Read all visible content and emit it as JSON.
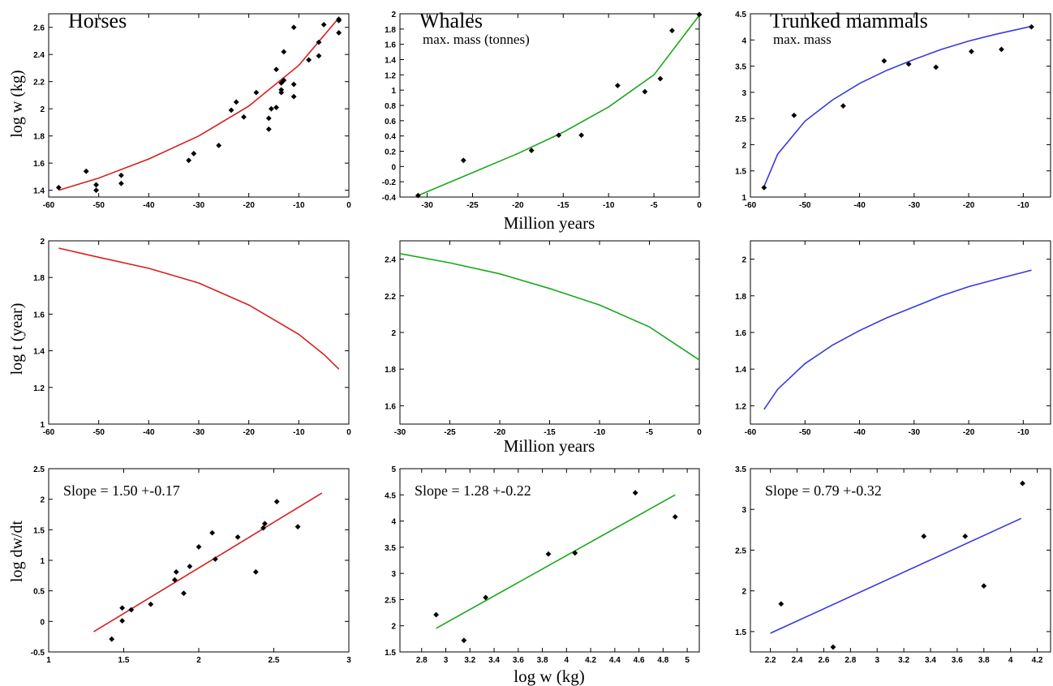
{
  "colors": {
    "horses": "#d81e1e",
    "whales": "#1aa81a",
    "trunked": "#3838e0",
    "points": "#000000"
  },
  "labels": {
    "log_w_kg": "log w (kg)",
    "log_t_year": "log t (year)",
    "log_dwdt": "log dw/dt",
    "million_years": "Million years",
    "xlabel_bottom": "log w (kg)"
  },
  "chart_data": [
    {
      "type": "scatter",
      "title": "Horses",
      "subtitle": "",
      "color": "#d81e1e",
      "xlim": [
        -60,
        0
      ],
      "ylim": [
        1.35,
        2.7
      ],
      "xticks": [
        -60,
        -50,
        -40,
        -30,
        -20,
        -10,
        0
      ],
      "yticks": [
        1.4,
        1.6,
        1.8,
        2,
        2.2,
        2.4,
        2.6
      ],
      "points": {
        "x": [
          -58,
          -52.5,
          -50.5,
          -50.5,
          -45.5,
          -45.5,
          -32,
          -31,
          -26,
          -23.5,
          -22.5,
          -21,
          -18.5,
          -16,
          -16,
          -15.5,
          -14.5,
          -14.5,
          -13.5,
          -13.5,
          -13.5,
          -13,
          -13,
          -11,
          -11,
          -11,
          -8,
          -6,
          -6,
          -5,
          -2,
          -2,
          -2
        ],
        "y": [
          1.42,
          1.54,
          1.4,
          1.44,
          1.45,
          1.51,
          1.62,
          1.67,
          1.73,
          1.99,
          2.05,
          1.94,
          2.12,
          1.85,
          1.93,
          2.0,
          2.01,
          2.29,
          2.12,
          2.14,
          2.19,
          2.21,
          2.42,
          2.09,
          2.18,
          2.6,
          2.36,
          2.39,
          2.49,
          2.62,
          2.56,
          2.65,
          2.66
        ]
      },
      "fit": {
        "x": [
          -58,
          -50,
          -40,
          -30,
          -20,
          -10,
          -2
        ],
        "y": [
          1.4,
          1.49,
          1.63,
          1.8,
          2.02,
          2.32,
          2.67
        ]
      }
    },
    {
      "type": "scatter",
      "title": "Whales",
      "subtitle": "max. mass (tonnes)",
      "color": "#1aa81a",
      "xlim": [
        -33,
        0
      ],
      "ylim": [
        -0.4,
        2
      ],
      "xticks": [
        -30,
        -25,
        -20,
        -15,
        -10,
        -5,
        0
      ],
      "yticks": [
        -0.4,
        -0.2,
        0,
        0.2,
        0.4,
        0.6,
        0.8,
        1,
        1.2,
        1.4,
        1.6,
        1.8,
        2
      ],
      "points": {
        "x": [
          -31,
          -26,
          -18.5,
          -15.5,
          -13,
          -9,
          -6,
          -4.3,
          -3,
          0
        ],
        "y": [
          -0.38,
          0.08,
          0.21,
          0.41,
          0.41,
          1.06,
          0.98,
          1.15,
          1.78,
          1.99
        ]
      },
      "fit": {
        "x": [
          -31,
          -25,
          -20,
          -15,
          -10,
          -5,
          0
        ],
        "y": [
          -0.38,
          -0.08,
          0.17,
          0.45,
          0.78,
          1.2,
          1.98
        ]
      }
    },
    {
      "type": "scatter",
      "title": "Trunked mammals",
      "subtitle": "max. mass",
      "color": "#3838e0",
      "xlim": [
        -60,
        -5
      ],
      "ylim": [
        1,
        4.5
      ],
      "xticks": [
        -60,
        -50,
        -40,
        -30,
        -20,
        -10
      ],
      "yticks": [
        1,
        1.5,
        2,
        2.5,
        3,
        3.5,
        4,
        4.5
      ],
      "points": {
        "x": [
          -57.5,
          -52,
          -43,
          -35.5,
          -31,
          -26,
          -19.5,
          -14,
          -8.5
        ],
        "y": [
          1.18,
          2.56,
          2.74,
          3.6,
          3.54,
          3.48,
          3.78,
          3.82,
          4.25
        ]
      },
      "fit": {
        "x": [
          -57.5,
          -55,
          -50,
          -45,
          -40,
          -35,
          -30,
          -25,
          -20,
          -15,
          -8.5
        ],
        "y": [
          1.2,
          1.82,
          2.45,
          2.85,
          3.17,
          3.42,
          3.63,
          3.82,
          3.98,
          4.11,
          4.26
        ]
      }
    },
    {
      "type": "line",
      "title": "",
      "subtitle": "",
      "color": "#d81e1e",
      "xlim": [
        -60,
        0
      ],
      "ylim": [
        1,
        2
      ],
      "xticks": [
        -60,
        -50,
        -40,
        -30,
        -20,
        -10,
        0
      ],
      "yticks": [
        1,
        1.2,
        1.4,
        1.6,
        1.8,
        2
      ],
      "line": {
        "x": [
          -58,
          -50,
          -40,
          -30,
          -20,
          -15,
          -10,
          -5,
          -2
        ],
        "y": [
          1.96,
          1.91,
          1.85,
          1.77,
          1.65,
          1.57,
          1.49,
          1.38,
          1.3
        ]
      }
    },
    {
      "type": "line",
      "title": "",
      "subtitle": "",
      "color": "#1aa81a",
      "xlim": [
        -30,
        0
      ],
      "ylim": [
        1.5,
        2.5
      ],
      "xticks": [
        -30,
        -25,
        -20,
        -15,
        -10,
        -5,
        0
      ],
      "yticks": [
        1.6,
        1.8,
        2,
        2.2,
        2.4
      ],
      "line": {
        "x": [
          -30,
          -25,
          -20,
          -15,
          -10,
          -5,
          0
        ],
        "y": [
          2.43,
          2.38,
          2.32,
          2.24,
          2.15,
          2.03,
          1.85
        ]
      }
    },
    {
      "type": "line",
      "title": "",
      "subtitle": "",
      "color": "#3838e0",
      "xlim": [
        -60,
        -5
      ],
      "ylim": [
        1.1,
        2.1
      ],
      "xticks": [
        -60,
        -50,
        -40,
        -30,
        -20,
        -10
      ],
      "yticks": [
        1.2,
        1.4,
        1.6,
        1.8,
        2
      ],
      "line": {
        "x": [
          -57.5,
          -55,
          -50,
          -45,
          -40,
          -35,
          -30,
          -25,
          -20,
          -15,
          -8.5
        ],
        "y": [
          1.18,
          1.29,
          1.43,
          1.53,
          1.61,
          1.68,
          1.74,
          1.8,
          1.85,
          1.89,
          1.94
        ]
      }
    },
    {
      "type": "scatter",
      "title": "",
      "subtitle": "",
      "color": "#d81e1e",
      "annotation": "Slope = 1.50 +-0.17",
      "xlim": [
        1,
        3
      ],
      "ylim": [
        -0.5,
        2.5
      ],
      "xticks": [
        1,
        1.5,
        2,
        2.5,
        3
      ],
      "yticks": [
        -0.5,
        0,
        0.5,
        1,
        1.5,
        2,
        2.5
      ],
      "points": {
        "x": [
          1.42,
          1.49,
          1.49,
          1.55,
          1.68,
          1.84,
          1.85,
          1.9,
          1.94,
          2.0,
          2.09,
          2.11,
          2.26,
          2.38,
          2.43,
          2.44,
          2.52,
          2.66
        ],
        "y": [
          -0.29,
          0.01,
          0.22,
          0.19,
          0.28,
          0.68,
          0.81,
          0.46,
          0.9,
          1.22,
          1.45,
          1.02,
          1.38,
          0.81,
          1.53,
          1.6,
          1.96,
          1.55
        ]
      },
      "fit": {
        "x": [
          1.3,
          2.82
        ],
        "y": [
          -0.17,
          2.1
        ]
      }
    },
    {
      "type": "scatter",
      "title": "",
      "subtitle": "",
      "color": "#1aa81a",
      "annotation": "Slope = 1.28 +-0.22",
      "xlim": [
        2.62,
        5.1
      ],
      "ylim": [
        1.5,
        5
      ],
      "xticks": [
        2.8,
        3,
        3.2,
        3.4,
        3.6,
        3.8,
        4,
        4.2,
        4.4,
        4.6,
        4.8,
        5
      ],
      "yticks": [
        1.5,
        2,
        2.5,
        3,
        3.5,
        4,
        4.5,
        5
      ],
      "points": {
        "x": [
          2.92,
          3.15,
          3.33,
          3.85,
          4.07,
          4.57,
          4.9
        ],
        "y": [
          2.21,
          1.72,
          2.54,
          3.37,
          3.39,
          4.54,
          4.08
        ]
      },
      "fit": {
        "x": [
          2.92,
          4.9
        ],
        "y": [
          1.95,
          4.5
        ]
      }
    },
    {
      "type": "scatter",
      "title": "",
      "subtitle": "",
      "color": "#3838e0",
      "annotation": "Slope = 0.79 +-0.32",
      "xlim": [
        2.05,
        4.3
      ],
      "ylim": [
        1.25,
        3.5
      ],
      "xticks": [
        2.2,
        2.4,
        2.6,
        2.8,
        3,
        3.2,
        3.4,
        3.6,
        3.8,
        4,
        4.2
      ],
      "yticks": [
        1.5,
        2,
        2.5,
        3,
        3.5
      ],
      "points": {
        "x": [
          2.28,
          2.67,
          3.35,
          3.66,
          3.8,
          4.09
        ],
        "y": [
          1.84,
          1.31,
          2.67,
          2.67,
          2.06,
          3.32
        ]
      },
      "fit": {
        "x": [
          2.2,
          4.08
        ],
        "y": [
          1.48,
          2.89
        ]
      }
    }
  ]
}
